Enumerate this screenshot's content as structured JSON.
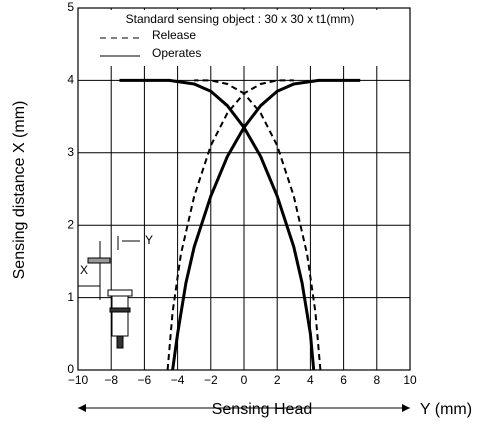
{
  "chart_data": {
    "type": "line",
    "legend_title": "Standard sensing object : 30 x 30 x t1(mm)",
    "x_label": "Sensing Head",
    "x_unit_label": "Y (mm)",
    "y_label": "Sensing distance X  (mm)",
    "annotations": [
      "Y",
      "X"
    ],
    "xlim": [
      -10,
      10
    ],
    "xticks": [
      {
        "value": -10,
        "label": "−10"
      },
      {
        "value": -8,
        "label": "−8"
      },
      {
        "value": -6,
        "label": "−6"
      },
      {
        "value": -4,
        "label": "−4"
      },
      {
        "value": -2,
        "label": "−2"
      },
      0,
      2,
      4,
      6,
      8,
      10
    ],
    "ylim": [
      0,
      5
    ],
    "yticks": [
      0,
      1,
      2,
      3,
      4,
      5
    ],
    "grid": true,
    "series": [
      {
        "name": "Release",
        "color": "#000000",
        "dash": true,
        "x": [
          -4.6,
          -4.3,
          -3.8,
          -3,
          -2,
          -1,
          0,
          1,
          2,
          3,
          null,
          4.6,
          4.3,
          3.8,
          3,
          2,
          1,
          0,
          -1,
          -2,
          -3
        ],
        "values": [
          0,
          0.8,
          1.6,
          2.4,
          3.1,
          3.55,
          3.82,
          3.95,
          4,
          4,
          null,
          0,
          0.8,
          1.6,
          2.4,
          3.1,
          3.55,
          3.82,
          3.95,
          4,
          4
        ]
      },
      {
        "name": "Operates",
        "color": "#000000",
        "dash": false,
        "x": [
          -7.5,
          -4.5,
          -3,
          -2,
          -1,
          0,
          1,
          2,
          3,
          3.5,
          4,
          4.2,
          null,
          7,
          4.5,
          3,
          2,
          1,
          0,
          -1,
          -2,
          -3,
          -3.5,
          -4,
          -4.3
        ],
        "values": [
          4,
          4,
          3.95,
          3.85,
          3.65,
          3.35,
          2.95,
          2.4,
          1.7,
          1.2,
          0.5,
          0,
          null,
          4,
          4,
          3.95,
          3.85,
          3.65,
          3.35,
          2.95,
          2.4,
          1.7,
          1.2,
          0.5,
          0
        ]
      }
    ]
  }
}
